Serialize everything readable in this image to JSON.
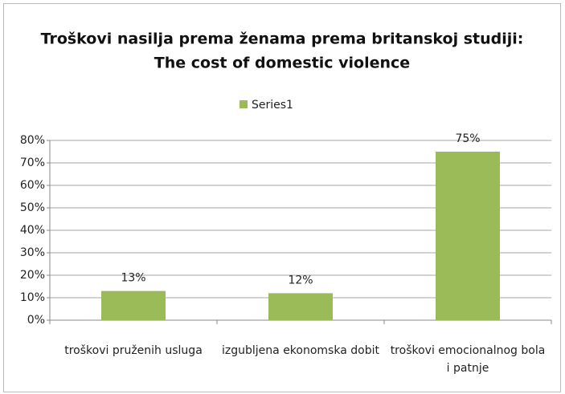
{
  "chart_data": {
    "type": "bar",
    "title": [
      "Troškovi nasilja prema ženama prema britanskoj studiji:",
      "The cost of domestic violence"
    ],
    "categories": [
      "troškovi pruženih usluga",
      "izgubljena ekonomska dobit",
      "troškovi emocionalnog bola i patnje"
    ],
    "series": [
      {
        "name": "Series1",
        "color": "#9bbb59",
        "values": [
          13,
          12,
          75
        ],
        "value_labels": [
          "13%",
          "12%",
          "75%"
        ]
      }
    ],
    "ylim": [
      0,
      80
    ],
    "yticks": [
      {
        "value": 0,
        "label": "0%"
      },
      {
        "value": 10,
        "label": "10%"
      },
      {
        "value": 20,
        "label": "20%"
      },
      {
        "value": 30,
        "label": "30%"
      },
      {
        "value": 40,
        "label": "40%"
      },
      {
        "value": 50,
        "label": "50%"
      },
      {
        "value": 60,
        "label": "60%"
      },
      {
        "value": 70,
        "label": "70%"
      },
      {
        "value": 80,
        "label": "80%"
      }
    ],
    "grid": true,
    "legend": "top"
  }
}
